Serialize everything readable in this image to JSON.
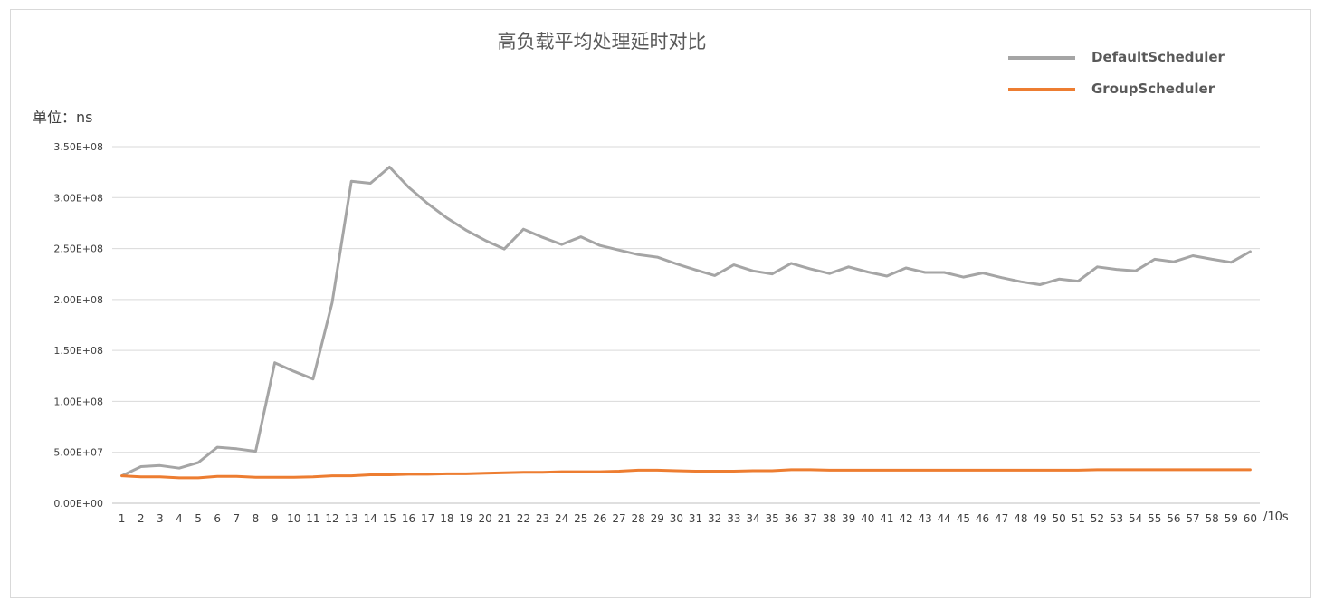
{
  "chart_data": {
    "type": "line",
    "title": "高负载平均处理延时对比",
    "unit_label": "单位：ns",
    "x_unit": "/10s",
    "x": [
      1,
      2,
      3,
      4,
      5,
      6,
      7,
      8,
      9,
      10,
      11,
      12,
      13,
      14,
      15,
      16,
      17,
      18,
      19,
      20,
      21,
      22,
      23,
      24,
      25,
      26,
      27,
      28,
      29,
      30,
      31,
      32,
      33,
      34,
      35,
      36,
      37,
      38,
      39,
      40,
      41,
      42,
      43,
      44,
      45,
      46,
      47,
      48,
      49,
      50,
      51,
      52,
      53,
      54,
      55,
      56,
      57,
      58,
      59,
      60
    ],
    "y_ticks": [
      "0.00E+00",
      "5.00E+07",
      "1.00E+08",
      "1.50E+08",
      "2.00E+08",
      "2.50E+08",
      "3.00E+08",
      "3.50E+08"
    ],
    "ylim": [
      0,
      350000000
    ],
    "grid": true,
    "legend_position": "top-right",
    "series": [
      {
        "name": "DefaultScheduler",
        "color": "#a5a5a5",
        "values": [
          27000000,
          36000000,
          37000000,
          34500000,
          40000000,
          55000000,
          53500000,
          51000000,
          138000000,
          129500000,
          122000000,
          197000000,
          316000000,
          314000000,
          330000000,
          310000000,
          294000000,
          280000000,
          268000000,
          258000000,
          249500000,
          269000000,
          261000000,
          254000000,
          261500000,
          253000000,
          248500000,
          244000000,
          241500000,
          235000000,
          229000000,
          223500000,
          234000000,
          228000000,
          225000000,
          235500000,
          230000000,
          225500000,
          232000000,
          227000000,
          223000000,
          231000000,
          226500000,
          226500000,
          222000000,
          226000000,
          221500000,
          217500000,
          214500000,
          220000000,
          218000000,
          232000000,
          229500000,
          228000000,
          239500000,
          237000000,
          243000000,
          239500000,
          236500000,
          247000000
        ]
      },
      {
        "name": "GroupScheduler",
        "color": "#ed7d31",
        "values": [
          27000000,
          26000000,
          26000000,
          25000000,
          25000000,
          26500000,
          26500000,
          25500000,
          25500000,
          25500000,
          26000000,
          27000000,
          27000000,
          28000000,
          28000000,
          28500000,
          28500000,
          29000000,
          29000000,
          29500000,
          30000000,
          30500000,
          30500000,
          31000000,
          31000000,
          31000000,
          31500000,
          32500000,
          32500000,
          32000000,
          31500000,
          31500000,
          31500000,
          32000000,
          32000000,
          33000000,
          33000000,
          32500000,
          32500000,
          32500000,
          32500000,
          32500000,
          32500000,
          32500000,
          32500000,
          32500000,
          32500000,
          32500000,
          32500000,
          32500000,
          32500000,
          33000000,
          33000000,
          33000000,
          33000000,
          33000000,
          33000000,
          33000000,
          33000000,
          33000000
        ]
      }
    ]
  }
}
